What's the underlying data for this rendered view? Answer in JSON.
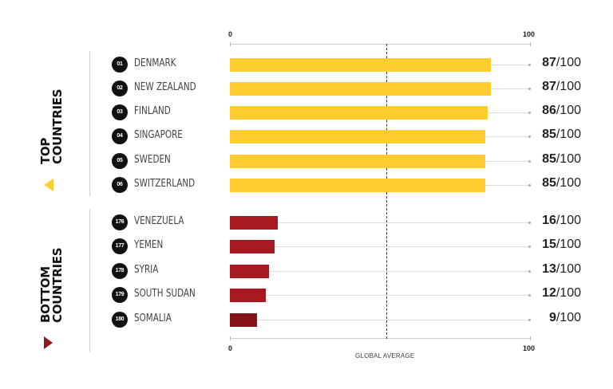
{
  "chart_data": {
    "type": "bar",
    "orientation": "horizontal",
    "title": "",
    "xlabel": "",
    "ylabel": "",
    "xlim": [
      0,
      100
    ],
    "x_ticks": [
      "0",
      "100"
    ],
    "reference_line": {
      "label": "GLOBAL AVERAGE",
      "approx_value": 52
    },
    "groups": [
      {
        "name": "TOP COUNTRIES",
        "color": "#fecd2f",
        "categories": [
          "DENMARK",
          "NEW ZEALAND",
          "FINLAND",
          "SINGAPORE",
          "SWEDEN",
          "SWITZERLAND"
        ],
        "ranks": [
          "01",
          "02",
          "03",
          "04",
          "05",
          "06"
        ],
        "values": [
          87,
          87,
          86,
          85,
          85,
          85
        ]
      },
      {
        "name": "BOTTOM COUNTRIES",
        "color": "#a8181f",
        "categories": [
          "VENEZUELA",
          "YEMEN",
          "SYRIA",
          "SOUTH SUDAN",
          "SOMALIA"
        ],
        "ranks": [
          "176",
          "177",
          "178",
          "179",
          "180"
        ],
        "values": [
          16,
          15,
          13,
          12,
          9
        ]
      }
    ]
  },
  "axis": {
    "tick_min": "0",
    "tick_max": "100",
    "avg_label": "GLOBAL AVERAGE"
  },
  "groups": {
    "top": {
      "line1": "TOP",
      "line2": "COUNTRIES"
    },
    "bottom": {
      "line1": "BOTTOM",
      "line2": "COUNTRIES"
    }
  },
  "top": [
    {
      "rank": "01",
      "name": "DENMARK",
      "score": "87",
      "denom": "/100",
      "color": "#fecd2f"
    },
    {
      "rank": "02",
      "name": "NEW ZEALAND",
      "score": "87",
      "denom": "/100",
      "color": "#fecd2f"
    },
    {
      "rank": "03",
      "name": "FINLAND",
      "score": "86",
      "denom": "/100",
      "color": "#fecd2f"
    },
    {
      "rank": "04",
      "name": "SINGAPORE",
      "score": "85",
      "denom": "/100",
      "color": "#fecd2f"
    },
    {
      "rank": "05",
      "name": "SWEDEN",
      "score": "85",
      "denom": "/100",
      "color": "#fecd2f"
    },
    {
      "rank": "06",
      "name": "SWITZERLAND",
      "score": "85",
      "denom": "/100",
      "color": "#fecd2f"
    }
  ],
  "bottom": [
    {
      "rank": "176",
      "name": "VENEZUELA",
      "score": "16",
      "denom": "/100",
      "color": "#a8181f"
    },
    {
      "rank": "177",
      "name": "YEMEN",
      "score": "15",
      "denom": "/100",
      "color": "#a8181f"
    },
    {
      "rank": "178",
      "name": "SYRIA",
      "score": "13",
      "denom": "/100",
      "color": "#a8181f"
    },
    {
      "rank": "179",
      "name": "SOUTH SUDAN",
      "score": "12",
      "denom": "/100",
      "color": "#a8181f"
    },
    {
      "rank": "180",
      "name": "SOMALIA",
      "score": "9",
      "denom": "/100",
      "color": "#861316"
    }
  ]
}
